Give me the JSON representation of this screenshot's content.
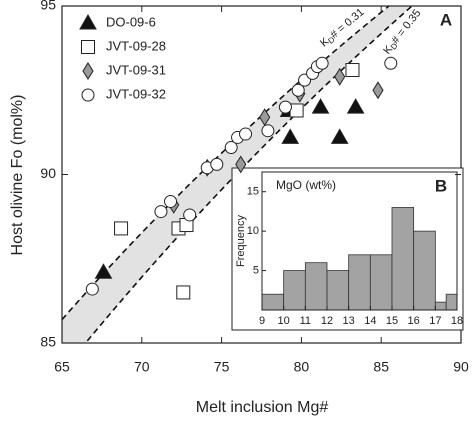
{
  "chart_data": [
    {
      "type": "scatter",
      "xlabel": "Melt inclusion Mg#",
      "ylabel": "Host olivine Fo (mol%)",
      "panel": "A",
      "xlim": [
        65,
        90
      ],
      "ylim": [
        85,
        95
      ],
      "xticks": [
        65,
        70,
        75,
        80,
        85,
        90
      ],
      "yticks": [
        85,
        90,
        95
      ],
      "kd_lines": [
        {
          "kd": 0.31,
          "label": [
            "K",
            "D",
            "# = 0.31"
          ]
        },
        {
          "kd": 0.35,
          "label": [
            "K",
            "D",
            "# = 0.35"
          ]
        }
      ],
      "band_color": "#e2e2e2",
      "series": [
        {
          "name": "DO-09-6",
          "marker": "triangle",
          "color": "#111111",
          "x": [
            67.6,
            79.2,
            79.3,
            81.2,
            82.4,
            83.4
          ],
          "values": [
            87.1,
            91.9,
            91.1,
            92.0,
            91.1,
            92.0
          ]
        },
        {
          "name": "JVT-09-28",
          "marker": "square",
          "color": "#ffffff",
          "x": [
            68.7,
            72.3,
            72.8,
            72.6,
            79.7,
            83.2
          ],
          "values": [
            88.4,
            88.4,
            88.5,
            86.5,
            91.9,
            93.1
          ]
        },
        {
          "name": "JVT-09-31",
          "marker": "diamond",
          "color": "#9a9a9a",
          "x": [
            72.0,
            74.1,
            76.2,
            77.7,
            79.9,
            80.9,
            82.4,
            84.8
          ],
          "values": [
            89.1,
            90.2,
            90.3,
            91.7,
            92.4,
            93.1,
            92.9,
            92.5
          ]
        },
        {
          "name": "JVT-09-32",
          "marker": "circle",
          "color": "#ffffff",
          "x": [
            66.9,
            71.2,
            71.8,
            73.0,
            74.1,
            74.7,
            75.6,
            76.0,
            76.5,
            77.9,
            79.0,
            79.8,
            80.2,
            80.7,
            81.0,
            81.3,
            85.6
          ],
          "values": [
            86.6,
            88.9,
            89.2,
            88.8,
            90.2,
            90.3,
            90.8,
            91.1,
            91.2,
            91.3,
            92.0,
            92.5,
            92.8,
            93.0,
            93.2,
            93.3,
            93.3
          ]
        }
      ]
    },
    {
      "type": "histogram",
      "title": "MgO (wt%)",
      "panel": "B",
      "ylabel": "Frequency",
      "color": "#a3a3a3",
      "bins": [
        9,
        10,
        11,
        12,
        13,
        14,
        15,
        16,
        17,
        17.5,
        18
      ],
      "values": [
        2,
        5,
        6,
        5,
        7,
        7,
        13,
        10,
        1,
        2
      ],
      "xlim": [
        9,
        18
      ],
      "ylim": [
        0,
        17.5
      ],
      "xticks": [
        9,
        10,
        11,
        12,
        13,
        14,
        15,
        16,
        17,
        18
      ],
      "yticks": [
        5,
        10,
        15
      ]
    }
  ]
}
